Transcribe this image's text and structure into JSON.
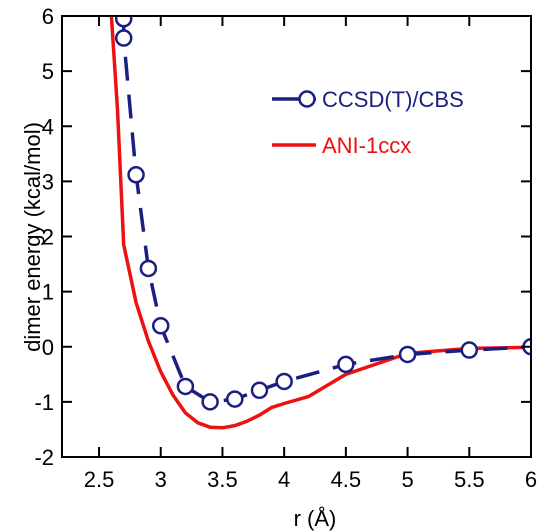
{
  "chart_data": {
    "type": "line",
    "xlabel": "r (Å)",
    "ylabel": "dimer energy (kcal/mol)",
    "xlim": [
      2.2,
      6.0
    ],
    "ylim": [
      -2,
      6
    ],
    "xticks": [
      "2.5",
      "3",
      "3.5",
      "4",
      "4.5",
      "5",
      "5.5",
      "6"
    ],
    "xtick_values": [
      2.5,
      3.0,
      3.5,
      4.0,
      4.5,
      5.0,
      5.5,
      6.0
    ],
    "yticks": [
      "-2",
      "-1",
      "0",
      "1",
      "2",
      "3",
      "4",
      "5",
      "6"
    ],
    "ytick_values": [
      -2,
      -1,
      0,
      1,
      2,
      3,
      4,
      5,
      6
    ],
    "grid": false,
    "legend_position": "upper-right",
    "series": [
      {
        "name": "CCSD(T)/CBS",
        "style": "dashed line with open circle markers",
        "color": "#1a1f80",
        "x": [
          2.7,
          2.7,
          2.8,
          2.9,
          3.0,
          3.2,
          3.4,
          3.6,
          3.8,
          4.0,
          4.5,
          5.0,
          5.5,
          6.0
        ],
        "y": [
          5.95,
          5.6,
          3.12,
          1.42,
          0.38,
          -0.72,
          -1.0,
          -0.95,
          -0.79,
          -0.63,
          -0.32,
          -0.14,
          -0.06,
          0.0
        ]
      },
      {
        "name": "ANI-1ccx",
        "style": "solid line",
        "color": "#ee1111",
        "x": [
          2.6,
          2.65,
          2.7,
          2.8,
          2.9,
          3.0,
          3.1,
          3.2,
          3.3,
          3.4,
          3.5,
          3.6,
          3.7,
          3.8,
          3.9,
          4.0,
          4.2,
          4.5,
          5.0,
          5.5,
          6.0
        ],
        "y": [
          6.0,
          4.3,
          1.85,
          0.8,
          0.1,
          -0.45,
          -0.88,
          -1.2,
          -1.38,
          -1.46,
          -1.47,
          -1.43,
          -1.35,
          -1.24,
          -1.1,
          -1.03,
          -0.9,
          -0.5,
          -0.12,
          -0.03,
          -0.01
        ]
      }
    ]
  }
}
